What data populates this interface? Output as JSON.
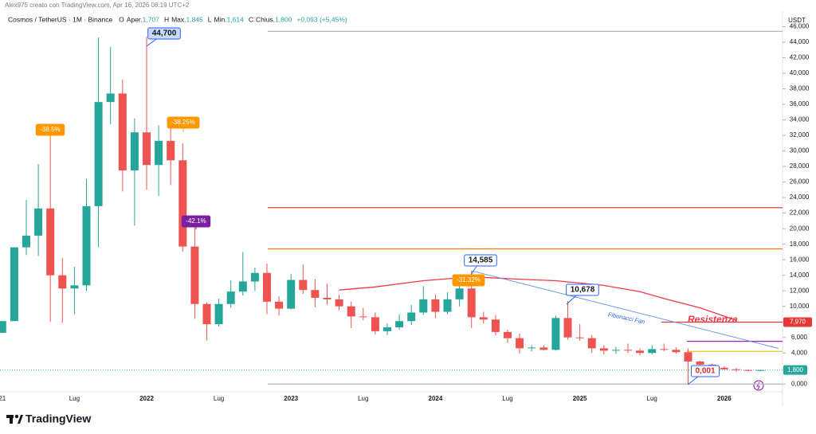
{
  "header": {
    "credit": "Alex975 creato con TradingView.com, Apr 16, 2026 08:19 UTC+2",
    "symbol": "Cosmos / TetherUS · 1M · Binance",
    "ohlc": [
      {
        "key": "O",
        "name": "Aper.",
        "value": "1,707"
      },
      {
        "key": "H",
        "name": "Max.",
        "value": "1,845"
      },
      {
        "key": "L",
        "name": "Min.",
        "value": "1,614"
      },
      {
        "key": "C",
        "name": "Chius.",
        "value": "1,800"
      }
    ],
    "change": "+0,093 (+5,45%)"
  },
  "logo": "TradingView",
  "chart_data": {
    "type": "candlestick",
    "currency": "USDT",
    "categories": [
      "21",
      null,
      null,
      null,
      null,
      null,
      "Lug",
      null,
      null,
      null,
      null,
      null,
      "2022",
      null,
      null,
      null,
      null,
      null,
      "Lug",
      null,
      null,
      null,
      null,
      null,
      "2023",
      null,
      null,
      null,
      null,
      null,
      "Lug",
      null,
      null,
      null,
      null,
      null,
      "2024",
      null,
      null,
      null,
      null,
      null,
      "Lug",
      null,
      null,
      null,
      null,
      null,
      "2025",
      null,
      null,
      null,
      null,
      null,
      "Lug",
      null,
      null,
      null,
      null,
      null,
      "2026",
      null,
      null,
      null
    ],
    "open": [
      6.6,
      8.1,
      17.6,
      19.1,
      22.6,
      14.0,
      12.3,
      12.7,
      22.9,
      36.3,
      37.4,
      27.5,
      32.4,
      28.2,
      31.3,
      28.8,
      17.7,
      10.3,
      7.7,
      10.3,
      11.9,
      13.2,
      14.3,
      10.6,
      9.7,
      13.4,
      12.1,
      11.1,
      10.9,
      10.0,
      8.7,
      8.6,
      6.8,
      7.3,
      8.1,
      9.2,
      10.9,
      9.3,
      10.9,
      12.3,
      8.6,
      8.3,
      6.7,
      5.9,
      4.6,
      4.7,
      4.4,
      8.5,
      6.0,
      5.9,
      4.6,
      4.3,
      4.4,
      4.3,
      4.0,
      4.5,
      4.4,
      4.1,
      2.9,
      2.5,
      2.1,
      1.9,
      1.8,
      1.707
    ],
    "high": [
      8.1,
      17.6,
      23.7,
      28.3,
      32.3,
      16.2,
      15.1,
      26.4,
      44.6,
      43.4,
      39.2,
      34.2,
      44.7,
      33.3,
      33.5,
      31.0,
      20.6,
      10.5,
      11.0,
      13.3,
      17.0,
      15.0,
      15.5,
      11.3,
      14.2,
      15.4,
      13.5,
      12.9,
      11.5,
      10.6,
      9.8,
      9.2,
      7.8,
      9.0,
      10.2,
      12.6,
      11.5,
      11.8,
      14.0,
      14.585,
      9.3,
      8.9,
      7.0,
      6.5,
      5.0,
      5.0,
      8.8,
      10.678,
      7.7,
      6.3,
      5.0,
      4.8,
      5.2,
      4.6,
      5.0,
      5.2,
      4.7,
      4.6,
      3.0,
      2.6,
      2.3,
      2.1,
      1.9,
      1.845
    ],
    "low": [
      6.6,
      8.1,
      16.6,
      16.5,
      8.0,
      7.9,
      9.0,
      12.0,
      17.6,
      33.4,
      24.8,
      20.4,
      25.0,
      24.2,
      25.6,
      17.0,
      8.4,
      5.6,
      7.4,
      9.8,
      11.4,
      12.0,
      9.0,
      8.8,
      9.6,
      11.6,
      9.9,
      10.2,
      9.5,
      7.2,
      8.2,
      6.4,
      6.3,
      7.0,
      7.6,
      8.9,
      8.5,
      9.0,
      10.0,
      7.2,
      7.8,
      6.3,
      5.3,
      3.9,
      4.2,
      4.3,
      4.3,
      5.7,
      5.6,
      4.0,
      3.8,
      3.9,
      4.0,
      3.7,
      3.8,
      4.2,
      3.9,
      0.001,
      2.2,
      1.9,
      1.8,
      1.6,
      1.6,
      1.614
    ],
    "close": [
      8.1,
      17.6,
      19.1,
      22.6,
      14.0,
      12.3,
      12.7,
      22.9,
      36.3,
      37.4,
      27.5,
      32.4,
      28.2,
      31.3,
      28.8,
      17.7,
      10.3,
      7.7,
      10.3,
      11.9,
      13.2,
      14.3,
      10.6,
      9.7,
      13.4,
      12.1,
      11.1,
      10.9,
      10.0,
      8.7,
      8.6,
      6.8,
      7.3,
      8.1,
      9.2,
      10.9,
      9.3,
      10.9,
      12.3,
      8.6,
      8.3,
      6.7,
      5.9,
      4.6,
      4.7,
      4.4,
      8.5,
      6.0,
      5.9,
      4.6,
      4.3,
      4.4,
      4.3,
      4.0,
      4.5,
      4.4,
      4.1,
      2.9,
      2.5,
      2.1,
      1.9,
      1.8,
      1.707,
      1.8
    ],
    "up_color": "#26a69a",
    "down_color": "#ef5350",
    "last_price_label": "1,800",
    "ylim": [
      -1.0,
      48.0
    ],
    "yticks": [
      {
        "value": 0,
        "label": "0,000"
      },
      {
        "value": 2,
        "label": "2,000"
      },
      {
        "value": 4,
        "label": "4,000"
      },
      {
        "value": 6,
        "label": "6,000"
      },
      {
        "value": 8,
        "label": "8,000"
      },
      {
        "value": 10,
        "label": "10,000"
      },
      {
        "value": 12,
        "label": "12,000"
      },
      {
        "value": 14,
        "label": "14,000"
      },
      {
        "value": 16,
        "label": "16,000"
      },
      {
        "value": 18,
        "label": "18,000"
      },
      {
        "value": 20,
        "label": "20,000"
      },
      {
        "value": 22,
        "label": "22,000"
      },
      {
        "value": 24,
        "label": "24,000"
      },
      {
        "value": 26,
        "label": "26,000"
      },
      {
        "value": 28,
        "label": "28,000"
      },
      {
        "value": 30,
        "label": "30,000"
      },
      {
        "value": 32,
        "label": "32,000"
      },
      {
        "value": 34,
        "label": "34,000"
      },
      {
        "value": 36,
        "label": "36,000"
      },
      {
        "value": 38,
        "label": "38,000"
      },
      {
        "value": 40,
        "label": "40,000"
      },
      {
        "value": 42,
        "label": "42,000"
      },
      {
        "value": 44,
        "label": "44,000"
      },
      {
        "value": 46,
        "label": "46,000"
      }
    ],
    "hlines": [
      {
        "value": 45.4,
        "color": "#b2b5be"
      },
      {
        "value": 22.7,
        "color": "#d32f2f"
      },
      {
        "value": 17.4,
        "color": "#f57c00"
      },
      {
        "value": 7.97,
        "color": "#e53935",
        "label": "7,970"
      },
      {
        "value": 5.5,
        "color": "#9c27b0"
      },
      {
        "value": 4.2,
        "color": "#fbc02d"
      },
      {
        "value": 0,
        "color": "#b2b5be"
      }
    ],
    "resistance": {
      "label": "Resistenza",
      "color": "#f23645",
      "x": [
        28,
        31,
        35,
        39,
        43,
        46,
        50,
        53,
        55,
        58,
        61
      ],
      "values": [
        12.1,
        12.5,
        13.3,
        13.8,
        13.5,
        13.3,
        12.7,
        11.9,
        11.0,
        9.8,
        8.2
      ]
    },
    "fib_fan": {
      "label": "Fibonacci Fan",
      "color": "#5b8def",
      "x": [
        39,
        64.5
      ],
      "values": [
        14.585,
        4.6
      ]
    },
    "annotations": [
      {
        "text": "-38.5%",
        "color": "#ff9800"
      },
      {
        "text": "44,700",
        "color": "#2962ff"
      },
      {
        "text": "-38.25%",
        "color": "#ff9800"
      },
      {
        "text": "-42.1%",
        "color": "#7b1fa2"
      },
      {
        "text": "14,585",
        "color": "#2962ff"
      },
      {
        "text": "-31.32%",
        "color": "#ff9800"
      },
      {
        "text": "10,678",
        "color": "#2962ff"
      },
      {
        "text": "0,001",
        "color": "#d32f2f"
      }
    ]
  }
}
